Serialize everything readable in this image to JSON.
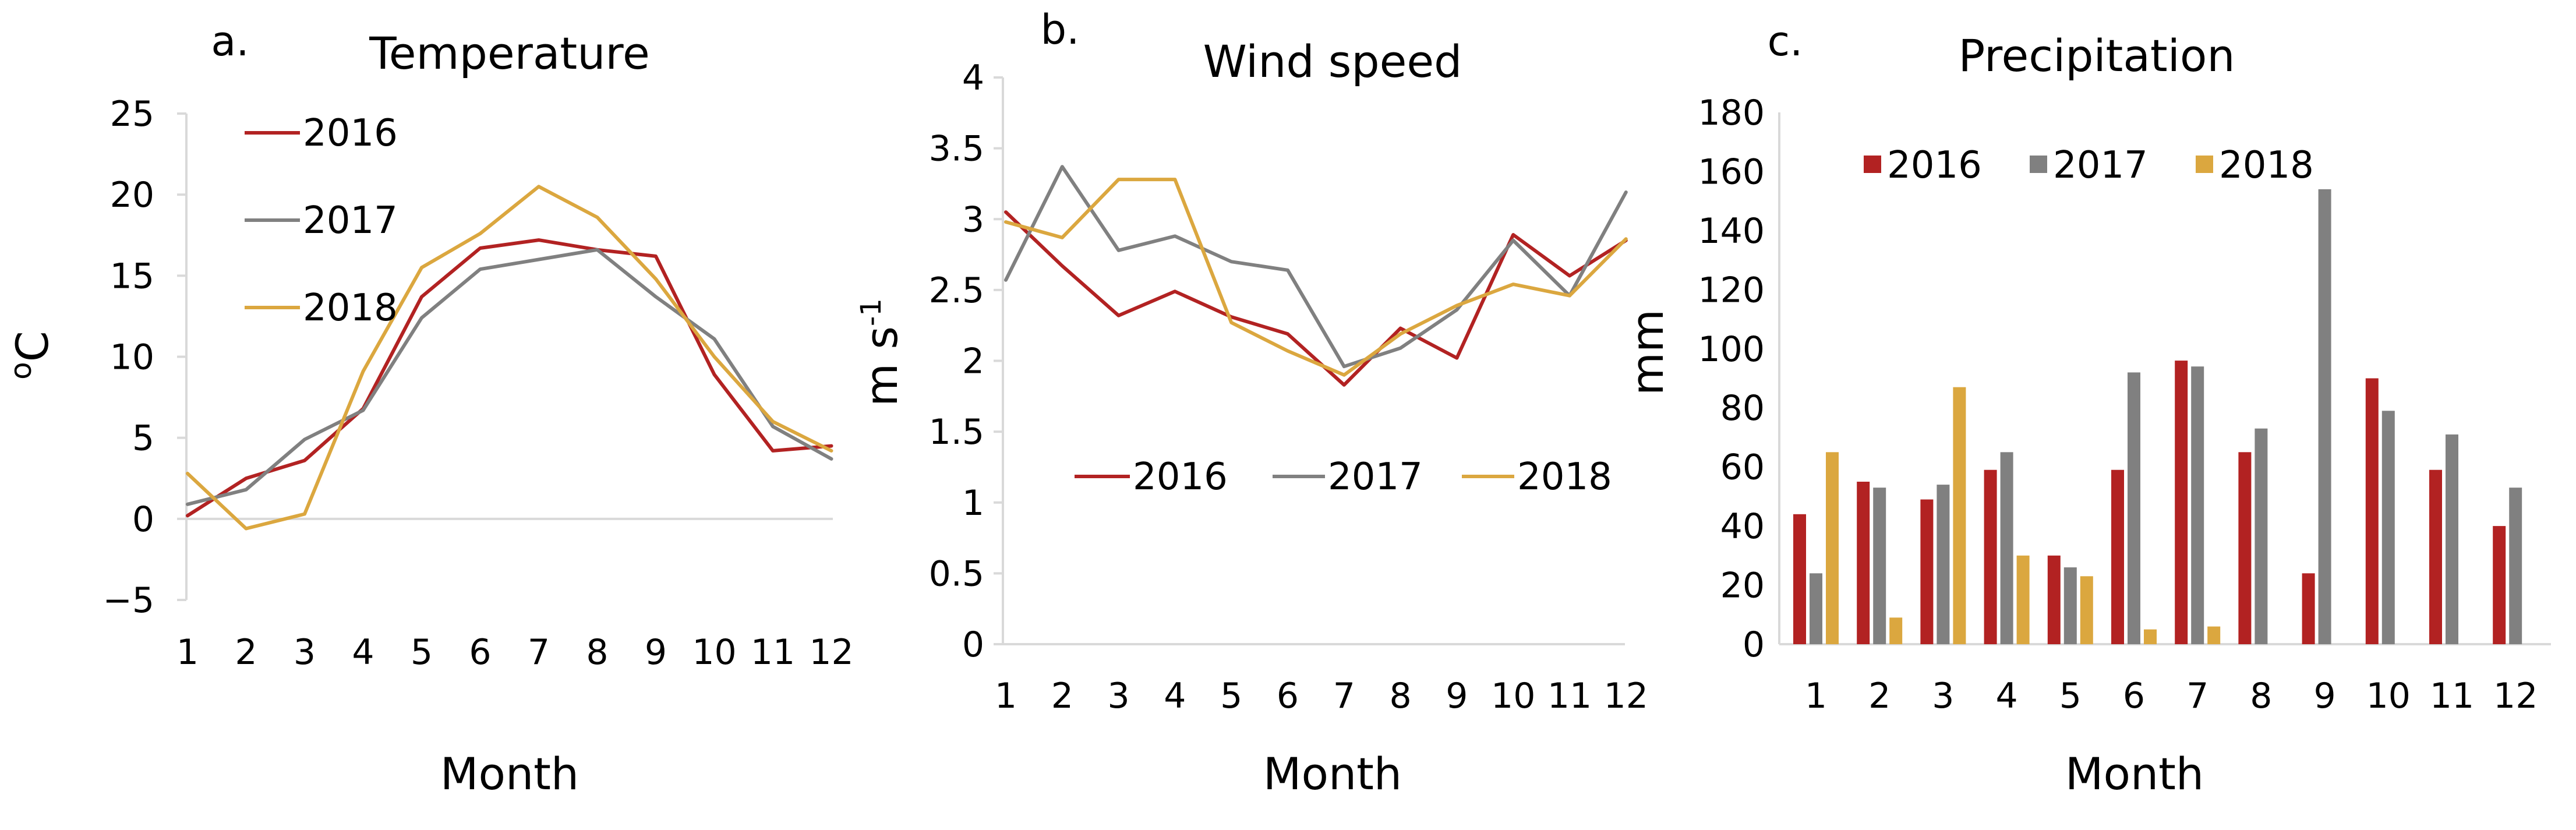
{
  "chart_data": [
    {
      "panel": "a.",
      "type": "line",
      "title": "Temperature",
      "xlabel": "Month",
      "ylabel": "°C",
      "ylabel_parts": [
        "o",
        "C"
      ],
      "ylim": [
        -5,
        25
      ],
      "yticks": [
        "−5",
        "0",
        "5",
        "10",
        "15",
        "20",
        "25"
      ],
      "ytick_values": [
        -5,
        0,
        5,
        10,
        15,
        20,
        25
      ],
      "categories": [
        "1",
        "2",
        "3",
        "4",
        "5",
        "6",
        "7",
        "8",
        "9",
        "10",
        "11",
        "12"
      ],
      "grid": false,
      "legend_position": "top-left",
      "series": [
        {
          "name": "2016",
          "color": "#b22222",
          "values": [
            0.2,
            2.5,
            3.6,
            6.8,
            13.7,
            16.7,
            17.2,
            16.6,
            16.2,
            8.9,
            4.2,
            4.5
          ]
        },
        {
          "name": "2017",
          "color": "#808080",
          "values": [
            0.9,
            1.8,
            4.9,
            6.7,
            12.4,
            15.4,
            16.0,
            16.6,
            13.7,
            11.1,
            5.7,
            3.7
          ]
        },
        {
          "name": "2018",
          "color": "#dba73f",
          "values": [
            2.8,
            -0.6,
            0.3,
            9.1,
            15.5,
            17.6,
            20.5,
            18.6,
            14.8,
            10.0,
            6.0,
            4.2
          ]
        }
      ]
    },
    {
      "panel": "b.",
      "type": "line",
      "title": "Wind speed",
      "xlabel": "Month",
      "ylabel": "m s⁻¹",
      "ylabel_parts": [
        "m s",
        "-1"
      ],
      "ylim": [
        0,
        4
      ],
      "yticks": [
        "0",
        "0.5",
        "1",
        "1.5",
        "2",
        "2.5",
        "3",
        "3.5",
        "4"
      ],
      "ytick_values": [
        0,
        0.5,
        1,
        1.5,
        2,
        2.5,
        3,
        3.5,
        4
      ],
      "categories": [
        "1",
        "2",
        "3",
        "4",
        "5",
        "6",
        "7",
        "8",
        "9",
        "10",
        "11",
        "12"
      ],
      "grid": false,
      "legend_position": "bottom",
      "series": [
        {
          "name": "2016",
          "color": "#b22222",
          "values": [
            3.05,
            2.67,
            2.32,
            2.49,
            2.31,
            2.19,
            1.83,
            2.23,
            2.02,
            2.89,
            2.6,
            2.85
          ]
        },
        {
          "name": "2017",
          "color": "#808080",
          "values": [
            2.57,
            3.37,
            2.78,
            2.88,
            2.7,
            2.64,
            1.96,
            2.09,
            2.36,
            2.85,
            2.46,
            3.19
          ]
        },
        {
          "name": "2018",
          "color": "#dba73f",
          "values": [
            2.98,
            2.87,
            3.28,
            3.28,
            2.27,
            2.07,
            1.9,
            2.19,
            2.39,
            2.54,
            2.46,
            2.86
          ]
        }
      ]
    },
    {
      "panel": "c.",
      "type": "bar",
      "title": "Precipitation",
      "xlabel": "Month",
      "ylabel": "mm",
      "ylim": [
        0,
        180
      ],
      "yticks": [
        "0",
        "20",
        "40",
        "60",
        "80",
        "100",
        "120",
        "140",
        "160",
        "180"
      ],
      "ytick_values": [
        0,
        20,
        40,
        60,
        80,
        100,
        120,
        140,
        160,
        180
      ],
      "categories": [
        "1",
        "2",
        "3",
        "4",
        "5",
        "6",
        "7",
        "8",
        "9",
        "10",
        "11",
        "12"
      ],
      "grid": false,
      "legend_position": "top",
      "series": [
        {
          "name": "2016",
          "color": "#b22222",
          "values": [
            44,
            55,
            49,
            59,
            30,
            59,
            96,
            65,
            24,
            90,
            59,
            40
          ]
        },
        {
          "name": "2017",
          "color": "#808080",
          "values": [
            24,
            53,
            54,
            65,
            26,
            92,
            94,
            73,
            154,
            79,
            71,
            53
          ]
        },
        {
          "name": "2018",
          "color": "#dba73f",
          "values": [
            65,
            9,
            87,
            30,
            23,
            5,
            6,
            0,
            0,
            0,
            0,
            0
          ]
        }
      ]
    }
  ]
}
